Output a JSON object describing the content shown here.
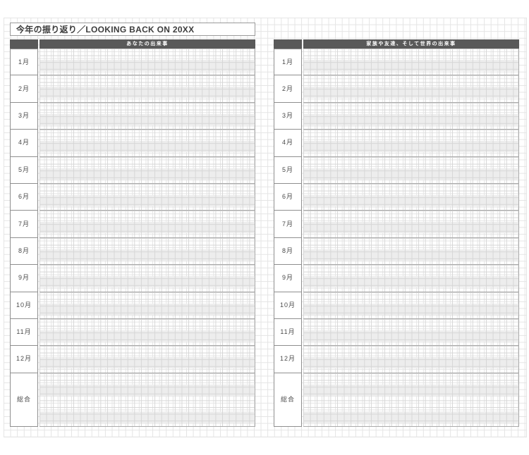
{
  "page": {
    "title": "今年の振り返り／LOOKING BACK ON 20XX"
  },
  "tables": {
    "left": {
      "header": "あなたの出来事"
    },
    "right": {
      "header": "家族や友達、そして世界の出来事"
    },
    "month_labels": [
      "1月",
      "2月",
      "3月",
      "4月",
      "5月",
      "6月",
      "7月",
      "8月",
      "9月",
      "10月",
      "11月",
      "12月"
    ],
    "summary_label": "総合"
  },
  "colors": {
    "header_bar": "#595959",
    "stripe": "#ededed",
    "label_border": "#8f8f8f",
    "row_border": "#ababab",
    "page_grid": "#e4e4e4",
    "content_grid": "#d6d6d6"
  }
}
